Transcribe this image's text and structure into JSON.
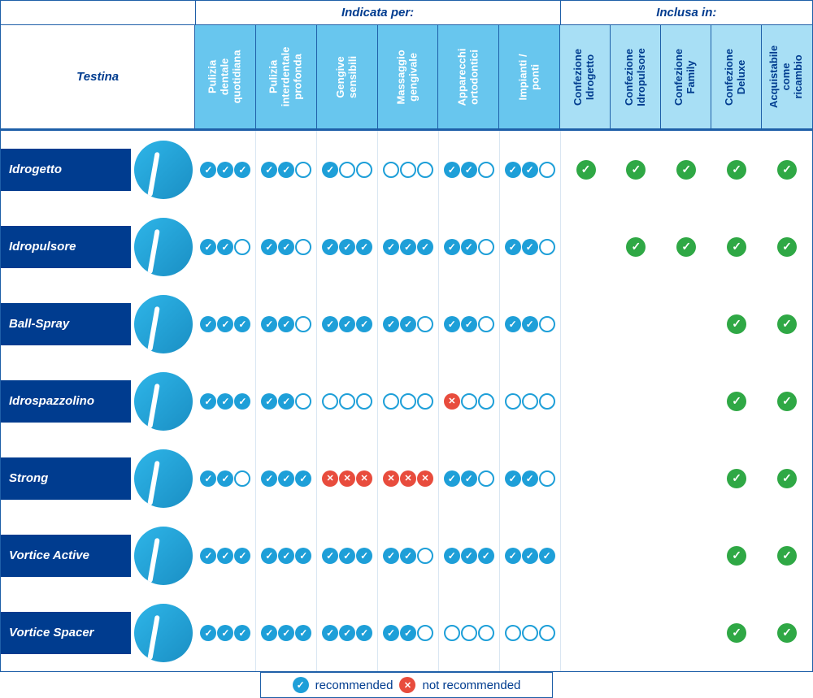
{
  "colors": {
    "brand_blue": "#003c8f",
    "border_blue": "#1e5fa8",
    "pip_blue": "#1e9fd8",
    "pip_red": "#e84c3d",
    "green": "#2fa845",
    "header_ind_bg": "#68c6ee",
    "header_inc_bg": "#a8dff5",
    "background": "#ffffff"
  },
  "header": {
    "testina": "Testina",
    "group_indicata": "Indicata per:",
    "group_inclusa": "Inclusa in:"
  },
  "columns_indicata": [
    "Pulizia\ndentale\nquotidiana",
    "Pulizia\ninterdentale\nprofonda",
    "Gengive\nsensibili",
    "Massaggio\ngengivale",
    "Apparecchi\nortodontici",
    "Impianti /\nponti"
  ],
  "columns_inclusa": [
    "Confezione\nIdrogetto",
    "Confezione\nIdropulsore",
    "Confezione\nFamily",
    "Confezione\nDeluxe",
    "Acquistabile\ncome\nricambio"
  ],
  "rows": [
    {
      "name": "Idrogetto",
      "ratings": [
        [
          3,
          "b"
        ],
        [
          2,
          "b"
        ],
        [
          1,
          "b"
        ],
        [
          0,
          "b"
        ],
        [
          2,
          "b"
        ],
        [
          2,
          "b"
        ]
      ],
      "includes": [
        true,
        true,
        true,
        true,
        true
      ]
    },
    {
      "name": "Idropulsore",
      "ratings": [
        [
          2,
          "b"
        ],
        [
          2,
          "b"
        ],
        [
          3,
          "b"
        ],
        [
          3,
          "b"
        ],
        [
          2,
          "b"
        ],
        [
          2,
          "b"
        ]
      ],
      "includes": [
        false,
        true,
        true,
        true,
        true
      ]
    },
    {
      "name": "Ball-Spray",
      "ratings": [
        [
          3,
          "b"
        ],
        [
          2,
          "b"
        ],
        [
          3,
          "b"
        ],
        [
          2,
          "b"
        ],
        [
          2,
          "b"
        ],
        [
          2,
          "b"
        ]
      ],
      "includes": [
        false,
        false,
        false,
        true,
        true
      ]
    },
    {
      "name": "Idrospazzolino",
      "ratings": [
        [
          3,
          "b"
        ],
        [
          2,
          "b"
        ],
        [
          0,
          "b"
        ],
        [
          0,
          "b"
        ],
        [
          1,
          "r"
        ],
        [
          0,
          "b"
        ]
      ],
      "includes": [
        false,
        false,
        false,
        true,
        true
      ]
    },
    {
      "name": "Strong",
      "ratings": [
        [
          2,
          "b"
        ],
        [
          3,
          "b"
        ],
        [
          3,
          "r"
        ],
        [
          3,
          "r"
        ],
        [
          2,
          "b"
        ],
        [
          2,
          "b"
        ]
      ],
      "includes": [
        false,
        false,
        false,
        true,
        true
      ]
    },
    {
      "name": "Vortice Active",
      "ratings": [
        [
          3,
          "b"
        ],
        [
          3,
          "b"
        ],
        [
          3,
          "b"
        ],
        [
          2,
          "b"
        ],
        [
          3,
          "b"
        ],
        [
          3,
          "b"
        ]
      ],
      "includes": [
        false,
        false,
        false,
        true,
        true
      ]
    },
    {
      "name": "Vortice Spacer",
      "ratings": [
        [
          3,
          "b"
        ],
        [
          3,
          "b"
        ],
        [
          3,
          "b"
        ],
        [
          2,
          "b"
        ],
        [
          0,
          "b"
        ],
        [
          0,
          "b"
        ]
      ],
      "includes": [
        false,
        false,
        false,
        true,
        true
      ]
    }
  ],
  "legend": {
    "recommended": "recommended",
    "not_recommended": "not recommended"
  }
}
